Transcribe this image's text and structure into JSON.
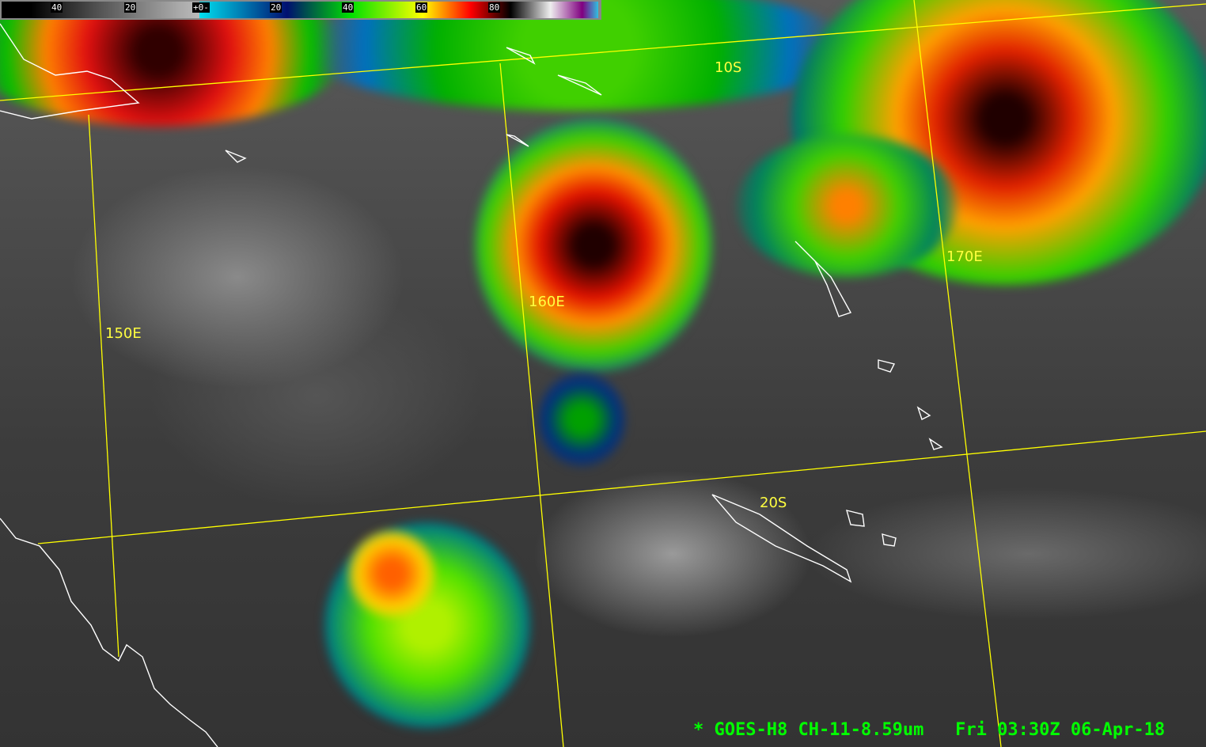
{
  "colorbar": {
    "ticks": [
      "40",
      "20",
      "+0-",
      "20",
      "40",
      "60",
      "80"
    ]
  },
  "grid_labels": {
    "lat_10s": "10S",
    "lat_20s": "20S",
    "lon_150e": "150E",
    "lon_160e": "160E",
    "lon_170e": "170E"
  },
  "caption": {
    "source": "* GOES-H8 CH-11-8.59um",
    "timestamp": "Fri 03:30Z 06-Apr-18"
  },
  "colors": {
    "grid": "#ffff00",
    "caption": "#00ff00",
    "coastline": "#ffffff"
  }
}
